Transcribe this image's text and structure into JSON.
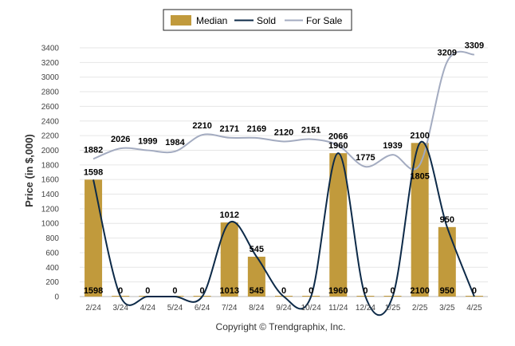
{
  "chart_data": {
    "type": "bar",
    "categories": [
      "2/24",
      "3/24",
      "4/24",
      "5/24",
      "6/24",
      "7/24",
      "8/24",
      "9/24",
      "10/24",
      "11/24",
      "12/24",
      "1/25",
      "2/25",
      "3/25",
      "4/25"
    ],
    "ylabel": "Price (in $,000)",
    "xlabel": "",
    "ylim": [
      0,
      3400
    ],
    "yticks": [
      0,
      200,
      400,
      600,
      800,
      1000,
      1200,
      1400,
      1600,
      1800,
      2000,
      2200,
      2400,
      2600,
      2800,
      3000,
      3200,
      3400
    ],
    "grid": true,
    "legend_position": "top-center",
    "series": [
      {
        "name": "Median",
        "kind": "bar",
        "color": "#c19a3c",
        "values": [
          1598,
          0,
          0,
          0,
          0,
          1013,
          545,
          0,
          0,
          1960,
          0,
          0,
          2100,
          950,
          0
        ],
        "bottom_labels": [
          "1598",
          "0",
          "0",
          "0",
          "0",
          "1013",
          "545",
          "0",
          "0",
          "1960",
          "0",
          "0",
          "2100",
          "950",
          "0"
        ]
      },
      {
        "name": "Sold",
        "kind": "line",
        "color": "#0d2a48",
        "values": [
          1598,
          0,
          0,
          0,
          0,
          1012,
          545,
          0,
          0,
          1960,
          0,
          0,
          2100,
          950,
          0
        ],
        "labels": [
          "1598",
          "0",
          "0",
          "0",
          "0",
          "1012",
          "545",
          "0",
          "0",
          "1960",
          "0",
          "0",
          "2100",
          "950",
          "0"
        ]
      },
      {
        "name": "For Sale",
        "kind": "line",
        "color": "#a3abc0",
        "values": [
          1882,
          2026,
          1999,
          1984,
          2210,
          2171,
          2169,
          2120,
          2151,
          2066,
          1775,
          1939,
          1805,
          3209,
          3309
        ],
        "labels": [
          "1882",
          "2026",
          "1999",
          "1984",
          "2210",
          "2171",
          "2169",
          "2120",
          "2151",
          "2066",
          "1775",
          "1939",
          "1805",
          "3209",
          "3309"
        ]
      }
    ]
  },
  "footer": {
    "copyright": "Copyright © Trendgraphix, Inc."
  }
}
